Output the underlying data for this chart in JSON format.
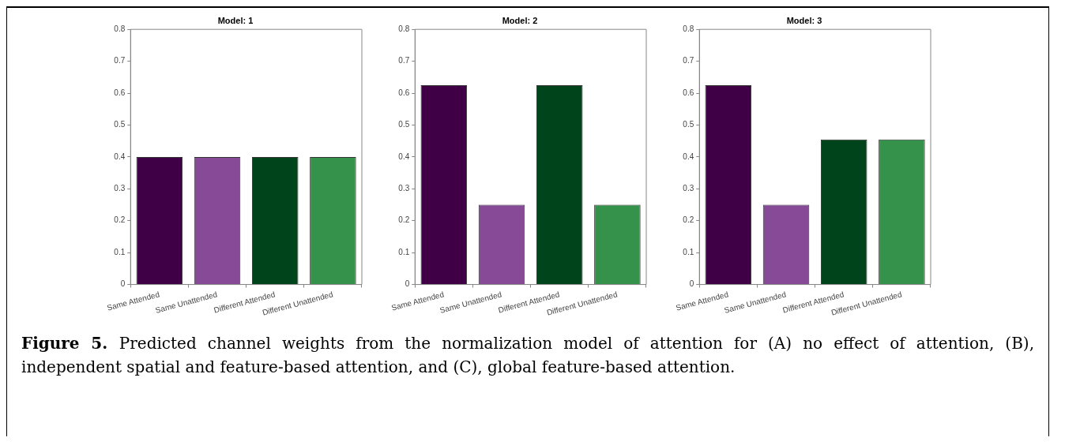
{
  "chart_data": [
    {
      "type": "bar",
      "title": "Model: 1",
      "categories": [
        "Same Attended",
        "Same Unattended",
        "Different Attended",
        "Different Unattended"
      ],
      "values": [
        0.4,
        0.4,
        0.4,
        0.4
      ],
      "colors": [
        "#3f0045",
        "#874a97",
        "#00441b",
        "#35924b"
      ],
      "ylim": [
        0,
        0.8
      ],
      "yticks": [
        0,
        0.1,
        0.2,
        0.3,
        0.4,
        0.5,
        0.6,
        0.7,
        0.8
      ],
      "grid": false
    },
    {
      "type": "bar",
      "title": "Model: 2",
      "categories": [
        "Same Attended",
        "Same Unattended",
        "Different Attended",
        "Different Unattended"
      ],
      "values": [
        0.625,
        0.25,
        0.625,
        0.25
      ],
      "colors": [
        "#3f0045",
        "#874a97",
        "#00441b",
        "#35924b"
      ],
      "ylim": [
        0,
        0.8
      ],
      "yticks": [
        0,
        0.1,
        0.2,
        0.3,
        0.4,
        0.5,
        0.6,
        0.7,
        0.8
      ],
      "grid": false
    },
    {
      "type": "bar",
      "title": "Model: 3",
      "categories": [
        "Same Attended",
        "Same Unattended",
        "Different Attended",
        "Different Unattended"
      ],
      "values": [
        0.625,
        0.25,
        0.455,
        0.455
      ],
      "colors": [
        "#3f0045",
        "#874a97",
        "#00441b",
        "#35924b"
      ],
      "ylim": [
        0,
        0.8
      ],
      "yticks": [
        0,
        0.1,
        0.2,
        0.3,
        0.4,
        0.5,
        0.6,
        0.7,
        0.8
      ],
      "grid": false
    },
    {
      "type": "other",
      "annotations": [
        "Figure 5.",
        "Predicted channel weights from the normalization model of attention for (A) no effect of attention, (B), independent spatial and feature-based attention, and (C), global feature-based attention."
      ]
    }
  ]
}
